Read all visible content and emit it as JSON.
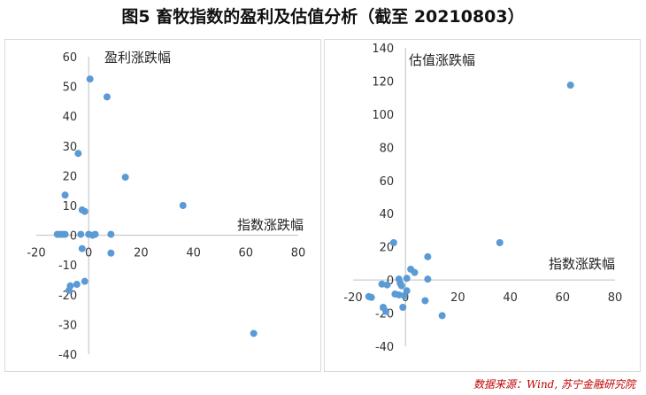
{
  "figure_title": "图5 畜牧指数的盈利及估值分析（截至 20210803）",
  "source_note": "数据来源：Wind, 苏宁金融研究院",
  "colors": {
    "marker": "#5b9bd5",
    "axis": "#bfbfbf"
  },
  "chart_data": [
    {
      "type": "scatter",
      "title": "",
      "xlabel": "指数涨跌幅",
      "ylabel": "盈利涨跌幅",
      "xlim": [
        -20,
        80
      ],
      "ylim": [
        -40,
        60
      ],
      "x_ticks": [
        "-20",
        "0",
        "20",
        "40",
        "60",
        "80"
      ],
      "y_ticks": [
        "60",
        "50",
        "40",
        "30",
        "20",
        "10",
        "0",
        "-10",
        "-20",
        "-30",
        "-40"
      ],
      "grid": false,
      "points": [
        {
          "x": 0.5,
          "y": 52.5
        },
        {
          "x": 7,
          "y": 46.5
        },
        {
          "x": -4,
          "y": 27.5
        },
        {
          "x": 14,
          "y": 19.5
        },
        {
          "x": -9,
          "y": 13.5
        },
        {
          "x": 36,
          "y": 10
        },
        {
          "x": -2.5,
          "y": 8.5
        },
        {
          "x": -1.5,
          "y": 8
        },
        {
          "x": -12,
          "y": 0.3
        },
        {
          "x": -11,
          "y": 0.3
        },
        {
          "x": -10,
          "y": 0.3
        },
        {
          "x": -9,
          "y": 0.3
        },
        {
          "x": -3,
          "y": 0.3
        },
        {
          "x": 0,
          "y": 0.3
        },
        {
          "x": 1.5,
          "y": 0
        },
        {
          "x": 2.5,
          "y": 0.3
        },
        {
          "x": 8.5,
          "y": 0.3
        },
        {
          "x": -2.5,
          "y": -4.5
        },
        {
          "x": 8.5,
          "y": -6
        },
        {
          "x": -1.5,
          "y": -15.5
        },
        {
          "x": -4.5,
          "y": -16.5
        },
        {
          "x": -7,
          "y": -17
        },
        {
          "x": -7.5,
          "y": -18.5
        },
        {
          "x": 63,
          "y": -33
        }
      ]
    },
    {
      "type": "scatter",
      "title": "",
      "xlabel": "指数涨跌幅",
      "ylabel": "估值涨跌幅",
      "xlim": [
        -20,
        80
      ],
      "ylim": [
        -40,
        140
      ],
      "x_ticks": [
        "-20",
        "0",
        "20",
        "40",
        "60",
        "80"
      ],
      "y_ticks": [
        "140",
        "120",
        "100",
        "80",
        "60",
        "40",
        "20",
        "0",
        "-20",
        "-40"
      ],
      "grid": false,
      "points": [
        {
          "x": 63,
          "y": 117.5
        },
        {
          "x": -4.5,
          "y": 22.5
        },
        {
          "x": 36,
          "y": 22.5
        },
        {
          "x": 8.5,
          "y": 14
        },
        {
          "x": 2,
          "y": 6.5
        },
        {
          "x": 3.5,
          "y": 4.5
        },
        {
          "x": 0.5,
          "y": 1
        },
        {
          "x": -2.5,
          "y": 0.5
        },
        {
          "x": 8.5,
          "y": 0.5
        },
        {
          "x": -9,
          "y": -2.5
        },
        {
          "x": -7,
          "y": -3
        },
        {
          "x": -2,
          "y": -2
        },
        {
          "x": -1.5,
          "y": -3.5
        },
        {
          "x": 0.5,
          "y": -6.5
        },
        {
          "x": -4,
          "y": -8.5
        },
        {
          "x": -2.5,
          "y": -9
        },
        {
          "x": -14,
          "y": -10
        },
        {
          "x": -13,
          "y": -10.5
        },
        {
          "x": -0.5,
          "y": -9.5
        },
        {
          "x": 7.5,
          "y": -12.5
        },
        {
          "x": -8.5,
          "y": -16.5
        },
        {
          "x": -1,
          "y": -16.5
        },
        {
          "x": -7.5,
          "y": -19
        },
        {
          "x": 14,
          "y": -21.5
        }
      ]
    }
  ]
}
